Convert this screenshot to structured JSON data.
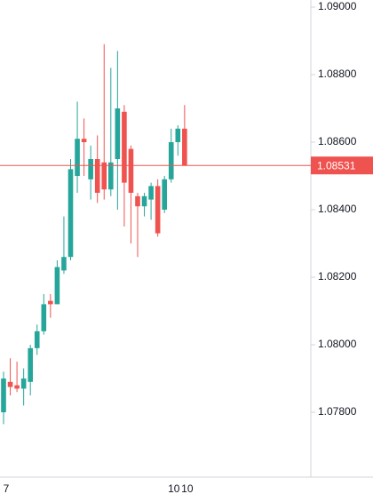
{
  "chart_data": {
    "type": "candlestick",
    "categories": [
      "7",
      null,
      null,
      null,
      null,
      null,
      null,
      null,
      null,
      null,
      null,
      null,
      null,
      null,
      null,
      null,
      null,
      null,
      null,
      null,
      null,
      null,
      null,
      null,
      null,
      "10",
      null,
      "10"
    ],
    "open": [
      1.078,
      1.0789,
      1.0788,
      1.0787,
      1.0789,
      1.0799,
      1.0804,
      1.0813,
      1.0812,
      1.0822,
      1.0826,
      1.085,
      1.0861,
      1.0849,
      1.0855,
      1.0854,
      1.0846,
      1.0855,
      1.0869,
      1.0858,
      1.0844,
      1.0841,
      1.0843,
      1.0847,
      1.084,
      1.0849,
      1.086,
      1.0864
    ],
    "high": [
      1.0792,
      1.0796,
      1.0795,
      1.0793,
      1.08,
      1.0806,
      1.0815,
      1.0815,
      1.0825,
      1.0838,
      1.0855,
      1.0872,
      1.0867,
      1.0859,
      1.0862,
      1.0889,
      1.0882,
      1.0887,
      1.0871,
      1.0859,
      1.0845,
      1.0845,
      1.0848,
      1.0849,
      1.085,
      1.0864,
      1.0865,
      1.0871
    ],
    "low": [
      1.07765,
      1.0785,
      1.0786,
      1.0782,
      1.0785,
      1.0797,
      1.0803,
      1.0808,
      1.0812,
      1.0821,
      1.0825,
      1.0845,
      1.085,
      1.0843,
      1.0842,
      1.0843,
      1.0844,
      1.084,
      1.0835,
      1.083,
      1.0826,
      1.0838,
      1.0837,
      1.0832,
      1.0839,
      1.0848,
      1.0856,
      1.0853
    ],
    "close": [
      1.079,
      1.07875,
      1.0787,
      1.079,
      1.0799,
      1.0804,
      1.0812,
      1.0812,
      1.0823,
      1.0826,
      1.0852,
      1.0861,
      1.086,
      1.0855,
      1.0845,
      1.0846,
      1.0854,
      1.087,
      1.0848,
      1.0845,
      1.0841,
      1.0844,
      1.0847,
      1.0833,
      1.0849,
      1.086,
      1.0864,
      1.08531
    ],
    "up_color": "#26a69a",
    "down_color": "#ef5350",
    "last_price": 1.08531,
    "last_price_color": "#ef5350",
    "ylim": [
      1.07608,
      1.09021
    ],
    "yticks": [
      {
        "value": 1.078,
        "label": "1.07800"
      },
      {
        "value": 1.08,
        "label": "1.08000"
      },
      {
        "value": 1.082,
        "label": "1.08200"
      },
      {
        "value": 1.084,
        "label": "1.08400"
      },
      {
        "value": 1.086,
        "label": "1.08600"
      },
      {
        "value": 1.088,
        "label": "1.08800"
      },
      {
        "value": 1.09,
        "label": "1.09000"
      }
    ]
  }
}
